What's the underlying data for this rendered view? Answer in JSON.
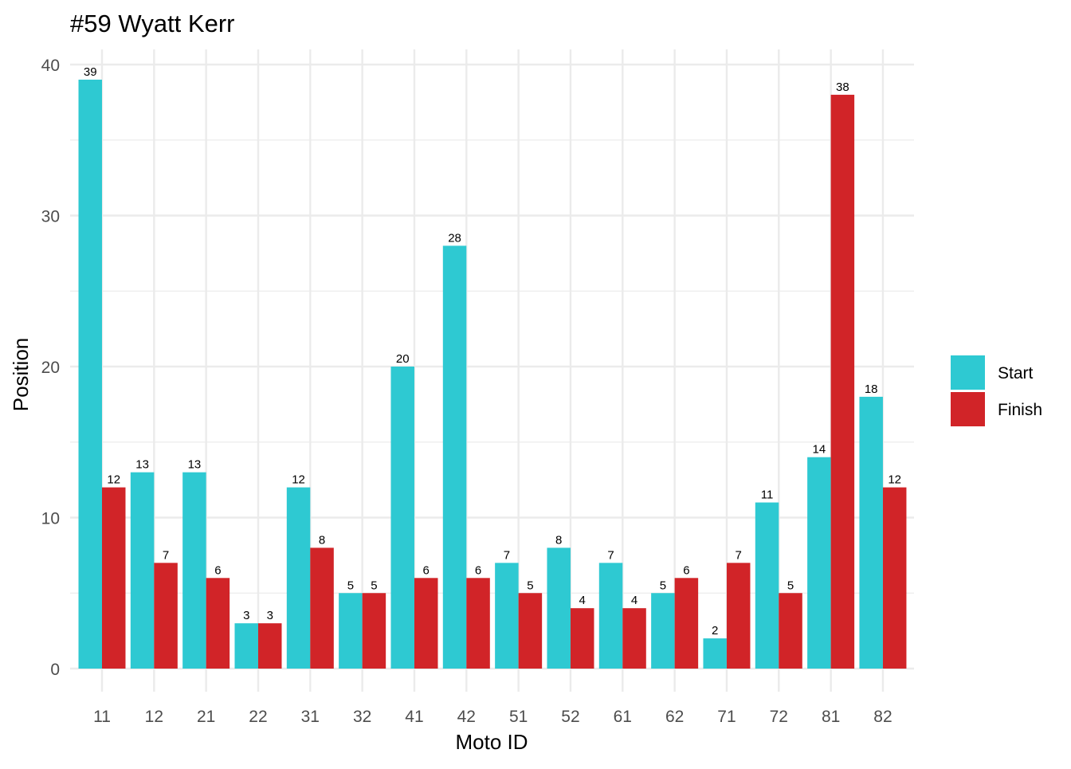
{
  "chart_data": {
    "type": "bar",
    "title": "#59 Wyatt Kerr",
    "xlabel": "Moto ID",
    "ylabel": "Position",
    "categories": [
      "11",
      "12",
      "21",
      "22",
      "31",
      "32",
      "41",
      "42",
      "51",
      "52",
      "61",
      "62",
      "71",
      "72",
      "81",
      "82"
    ],
    "series": [
      {
        "name": "Start",
        "color": "#2ec9d2",
        "values": [
          39,
          13,
          13,
          3,
          12,
          5,
          20,
          28,
          7,
          8,
          7,
          5,
          2,
          11,
          14,
          18
        ]
      },
      {
        "name": "Finish",
        "color": "#d12428",
        "values": [
          12,
          7,
          6,
          3,
          8,
          5,
          6,
          6,
          5,
          4,
          4,
          6,
          7,
          5,
          38,
          12
        ]
      }
    ],
    "ylim": [
      0,
      40
    ],
    "yticks": [
      0,
      10,
      20,
      30,
      40
    ],
    "grid": true,
    "legend_position": "right",
    "data_labels": true
  }
}
